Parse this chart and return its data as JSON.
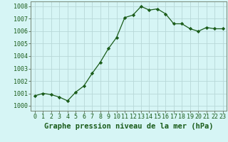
{
  "x": [
    0,
    1,
    2,
    3,
    4,
    5,
    6,
    7,
    8,
    9,
    10,
    11,
    12,
    13,
    14,
    15,
    16,
    17,
    18,
    19,
    20,
    21,
    22,
    23
  ],
  "y": [
    1000.8,
    1001.0,
    1000.9,
    1000.7,
    1000.4,
    1001.1,
    1001.6,
    1002.6,
    1003.5,
    1004.6,
    1005.5,
    1007.1,
    1007.3,
    1008.0,
    1007.7,
    1007.8,
    1007.4,
    1006.6,
    1006.6,
    1006.2,
    1006.0,
    1006.3,
    1006.2,
    1006.2
  ],
  "line_color": "#1a5c1a",
  "marker": "D",
  "marker_size": 2.2,
  "bg_color": "#d6f5f5",
  "grid_color": "#b8d8d8",
  "xlabel": "Graphe pression niveau de la mer (hPa)",
  "xlabel_fontsize": 7.5,
  "ylabel_ticks": [
    1000,
    1001,
    1002,
    1003,
    1004,
    1005,
    1006,
    1007,
    1008
  ],
  "ylim": [
    999.6,
    1008.4
  ],
  "xlim": [
    -0.5,
    23.5
  ],
  "tick_fontsize": 6.0,
  "linewidth": 0.9
}
